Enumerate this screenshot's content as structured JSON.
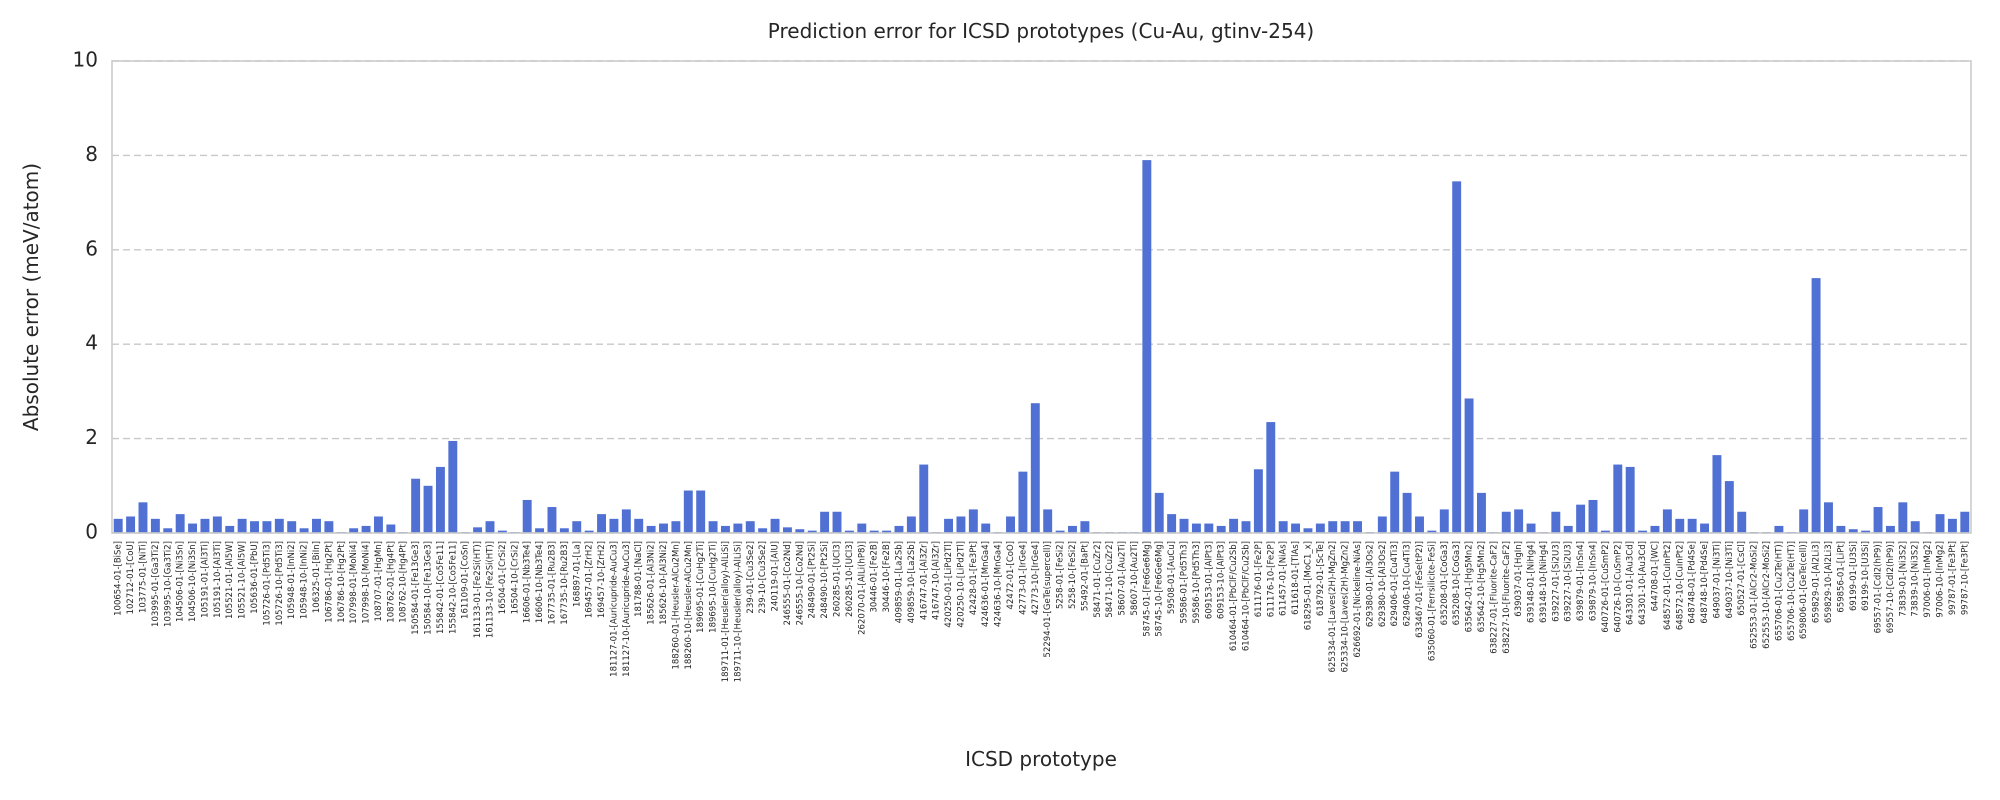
{
  "chart_data": {
    "type": "bar",
    "title": "Prediction error for ICSD prototypes (Cu-Au, gtinv-254)",
    "xlabel": "ICSD prototype",
    "ylabel": "Absolute error (meV/atom)",
    "color": "#5070d4",
    "grid": true,
    "ylim": [
      0,
      10
    ],
    "yticks": [
      0,
      2,
      4,
      6,
      8,
      10
    ],
    "categories": [
      "100654-01-[BiSe]",
      "102712-01-[CoU]",
      "103775-01-[NiTi]",
      "103995-01-[Ga3Ti2]",
      "103995-10-[Ga3Ti2]",
      "104506-01-[Ni3Sn]",
      "104506-10-[Ni3Sn]",
      "105191-01-[Al3Ti]",
      "105191-10-[Al3Ti]",
      "105521-01-[Al5W]",
      "105521-10-[Al5W]",
      "105636-01-[PbU]",
      "105726-01-[Pd5Ti3]",
      "105726-10-[Pd5Ti3]",
      "105948-01-[InNi2]",
      "105948-10-[InNi2]",
      "106325-01-[BiIn]",
      "106786-01-[Hg2Pt]",
      "106786-10-[Hg2Pt]",
      "107998-01-[MoNi4]",
      "107998-10-[MoNi4]",
      "108707-01-[HgMn]",
      "108762-01-[Hg4Pt]",
      "108762-10-[Hg4Pt]",
      "150584-01-[Fe13Ge3]",
      "150584-10-[Fe13Ge3]",
      "155842-01-[Co5Fe11]",
      "155842-10-[Co5Fe11]",
      "161109-01-[CoSn]",
      "161133-01-[Fe2Si(HT)]",
      "161133-10-[Fe2Si(HT)]",
      "16504-01-[CrSi2]",
      "16504-10-[CrSi2]",
      "16606-01-[Nb3Te4]",
      "16606-10-[Nb3Te4]",
      "167735-01-[Ru2B3]",
      "167735-10-[Ru2B3]",
      "168897-01-[La]",
      "169457-01-[ZrH2]",
      "169457-10-[ZrH2]",
      "181127-01-[Auricupride-AuCu3]",
      "181127-10-[Auricupride-AuCu3]",
      "181788-01-[NaCl]",
      "185626-01-[Al3Ni2]",
      "185626-10-[Al3Ni2]",
      "188260-01-[Heusler-AlCu2Mn]",
      "188260-10-[Heusler-AlCu2Mn]",
      "189695-01-[CuHg2Ti]",
      "189695-10-[CuHg2Ti]",
      "189711-01-[Heusler(alloy)-AlLiSi]",
      "189711-10-[Heusler(alloy)-AlLiSi]",
      "239-01-[Cu3Se2]",
      "239-10-[Cu3Se2]",
      "240119-01-[AlU]",
      "246555-01-[Co2Nd]",
      "246555-10-[Co2Nd]",
      "248490-01-[Pt2Si]",
      "248490-10-[Pt2Si]",
      "260285-01-[UCl3]",
      "260285-10-[UCl3]",
      "262070-01-[AlLi(hP8)]",
      "30446-01-[Fe2B]",
      "30446-10-[Fe2B]",
      "409859-01-[La2Sb]",
      "409859-10-[La2Sb]",
      "416747-01-[Al3Zr]",
      "416747-10-[Al3Zr]",
      "420250-01-[LiPd2Tl]",
      "420250-10-[LiPd2Tl]",
      "42428-01-[Fe3Pt]",
      "424636-01-[MnGa4]",
      "424636-10-[MnGa4]",
      "42472-01-[CoO]",
      "42773-01-[IrGe4]",
      "42773-10-[IrGe4]",
      "52294-01-[GeTe(supercell)]",
      "5258-01-[FeSi2]",
      "5258-10-[FeSi2]",
      "55492-01-[BaPt]",
      "58471-01-[CuZr2]",
      "58471-10-[CuZr2]",
      "58607-01-[Au2Ti]",
      "58607-10-[Au2Ti]",
      "58745-01-[Fe6Ge6Mg]",
      "58745-10-[Fe6Ge6Mg]",
      "59508-01-[AuCu]",
      "59586-01-[Pd5Th3]",
      "59586-10-[Pd5Th3]",
      "609153-01-[AlPt3]",
      "609153-10-[AlPt3]",
      "610464-01-[PbClF/Cu2Sb]",
      "610464-10-[PbClF/Cu2Sb]",
      "611176-01-[Fe2P]",
      "611176-10-[Fe2P]",
      "611457-01-[NiAs]",
      "611618-01-[TlAs]",
      "618295-01-[MoC1_x]",
      "618792-01-[ScTe]",
      "625334-01-[Laves(2H)-MgZn2]",
      "625334-10-[Laves(2H)-MgZn2]",
      "626692-01-[Nickeline-NiAs]",
      "629380-01-[Al3Os2]",
      "629380-10-[Al3Os2]",
      "629406-01-[Cu4Ti3]",
      "629406-10-[Cu4Ti3]",
      "633467-01-[FeSe(tP2)]",
      "635060-01-[Ferrsilicite-FeSi]",
      "635208-01-[CoGa3]",
      "635208-10-[CoGa3]",
      "635642-01-[Hg5Mn2]",
      "635642-10-[Hg5Mn2]",
      "638227-01-[Fluorite-CaF2]",
      "638227-10-[Fluorite-CaF2]",
      "639037-01-[HgIn]",
      "639148-01-[NiHg4]",
      "639148-10-[NiHg4]",
      "639227-01-[Si2U3]",
      "639227-10-[Si2U3]",
      "639879-01-[InSn4]",
      "639879-10-[InSn4]",
      "640726-01-[CuSmP2]",
      "640726-10-[CuSmP2]",
      "643301-01-[Au3Cd]",
      "643301-10-[Au3Cd]",
      "644708-01-[WC]",
      "648572-01-[CuInPt2]",
      "648572-10-[CuInPt2]",
      "648748-01-[Pd4Se]",
      "648748-10-[Pd4Se]",
      "649037-01-[Ni3Ti]",
      "649037-10-[Ni3Ti]",
      "650527-01-[CsCl]",
      "652553-01-[AlCr2-MoSi2]",
      "652553-10-[AlCr2-MoSi2]",
      "655706-01-[Cu2Te(HT)]",
      "655706-10-[Cu2Te(HT)]",
      "659806-01-[GeTe(cell)]",
      "659829-01-[Al2Li3]",
      "659829-10-[Al2Li3]",
      "659856-01-[LiPt]",
      "69199-01-[U3Si]",
      "69199-10-[U3Si]",
      "69557-01-[CdI2(hP9)]",
      "69557-10-[CdI2(hP9)]",
      "73839-01-[Ni3S2]",
      "73839-10-[Ni3S2]",
      "97006-01-[InMg2]",
      "97006-10-[InMg2]",
      "99787-01-[Fe3Pt]",
      "99787-10-[Fe3Pt]"
    ],
    "values": [
      0.3,
      0.35,
      0.65,
      0.3,
      0.1,
      0.4,
      0.2,
      0.3,
      0.35,
      0.15,
      0.3,
      0.25,
      0.25,
      0.3,
      0.25,
      0.1,
      0.3,
      0.25,
      0.02,
      0.1,
      0.15,
      0.35,
      0.18,
      0.02,
      1.15,
      1.0,
      1.4,
      1.95,
      0.02,
      0.12,
      0.25,
      0.05,
      0.02,
      0.7,
      0.1,
      0.55,
      0.1,
      0.25,
      0.05,
      0.4,
      0.3,
      0.5,
      0.3,
      0.15,
      0.2,
      0.25,
      0.9,
      0.9,
      0.25,
      0.15,
      0.2,
      0.25,
      0.1,
      0.3,
      0.12,
      0.08,
      0.05,
      0.45,
      0.45,
      0.05,
      0.2,
      0.05,
      0.05,
      0.15,
      0.35,
      1.45,
      0.02,
      0.3,
      0.35,
      0.5,
      0.2,
      0.02,
      0.35,
      1.3,
      2.75,
      0.5,
      0.05,
      0.15,
      0.25,
      0.02,
      0.02,
      0.02,
      0.02,
      7.9,
      0.85,
      0.4,
      0.3,
      0.2,
      0.2,
      0.15,
      0.3,
      0.25,
      1.35,
      2.35,
      0.25,
      0.2,
      0.1,
      0.2,
      0.25,
      0.25,
      0.25,
      0.02,
      0.35,
      1.3,
      0.85,
      0.35,
      0.05,
      0.5,
      7.45,
      2.85,
      0.85,
      0.02,
      0.45,
      0.5,
      0.2,
      0.02,
      0.45,
      0.15,
      0.6,
      0.7,
      0.05,
      1.45,
      1.4,
      0.05,
      0.15,
      0.5,
      0.3,
      0.3,
      0.2,
      1.65,
      1.1,
      0.45,
      0.02,
      0.02,
      0.15,
      0.02,
      0.5,
      5.4,
      0.65,
      0.15,
      0.08,
      0.05,
      0.55,
      0.15,
      0.65,
      0.25,
      0.02,
      0.4,
      0.3,
      0.45
    ]
  }
}
